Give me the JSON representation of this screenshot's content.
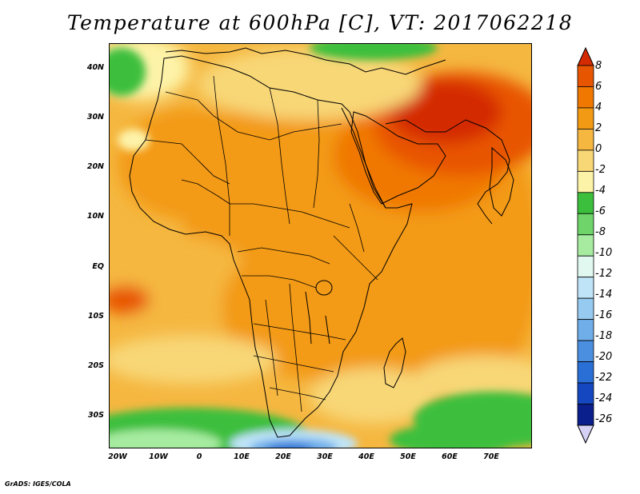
{
  "title": "Temperature at 600hPa [C], VT: 2017062218",
  "credit": "GrADS: IGES/COLA",
  "map": {
    "latitude_labels": [
      "40N",
      "30N",
      "20N",
      "10N",
      "EQ",
      "10S",
      "20S",
      "30S"
    ],
    "longitude_labels": [
      "20W",
      "10W",
      "0",
      "10E",
      "20E",
      "30E",
      "40E",
      "50E",
      "60E",
      "70E"
    ],
    "lat_range": [
      -37,
      45
    ],
    "lon_range": [
      -22,
      79
    ],
    "coastlines": true,
    "country_borders": true
  },
  "colorbar": {
    "labels": [
      "8",
      "6",
      "4",
      "2",
      "0",
      "-2",
      "-4",
      "-6",
      "-8",
      "-10",
      "-12",
      "-14",
      "-16",
      "-18",
      "-20",
      "-22",
      "-24",
      "-26"
    ],
    "colors": [
      "#d42a00",
      "#e85500",
      "#f07800",
      "#f39a14",
      "#f5b740",
      "#f8d777",
      "#fdf3a8",
      "#3cbf3c",
      "#6fd56a",
      "#a6eba0",
      "#e0f8f0",
      "#bfe4f8",
      "#97caf0",
      "#70aeea",
      "#4b90e0",
      "#2a6fd6",
      "#1447c0",
      "#0a1e8c",
      "#d6d2f6"
    ]
  }
}
